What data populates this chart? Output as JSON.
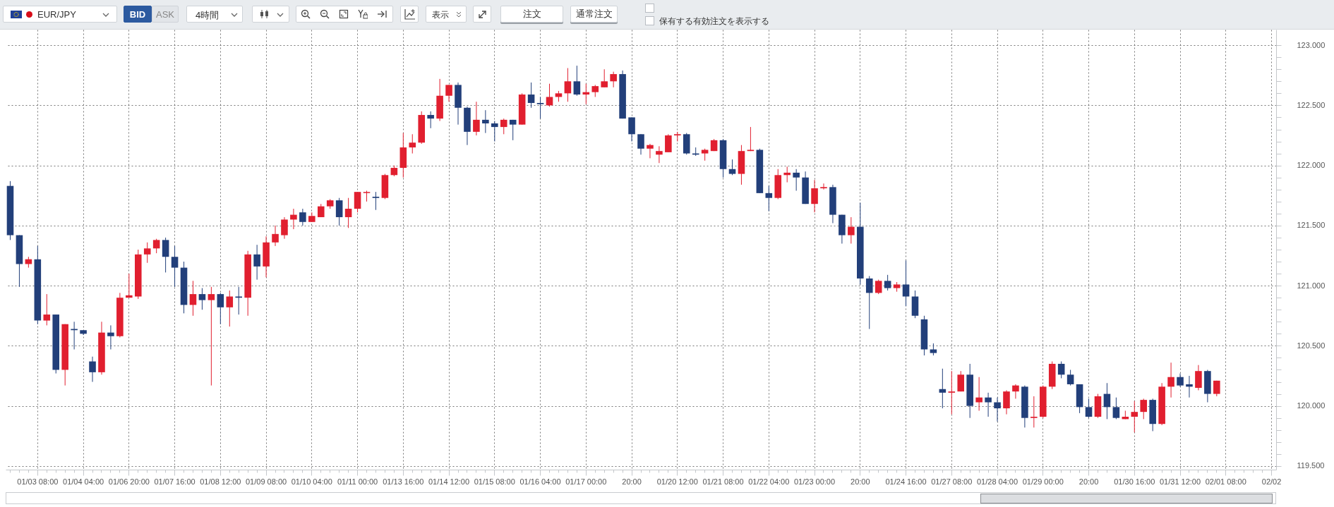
{
  "chart_data": {
    "type": "candlestick",
    "title": "EUR/JPY",
    "annotations": [
      "BID",
      "ASK",
      "4時間",
      "表示",
      "注文",
      "通常注文",
      "保有する有効注文を表示する"
    ],
    "categories": [
      null,
      null,
      null,
      "01/03 08:00",
      null,
      null,
      null,
      null,
      "01/04 04:00",
      null,
      null,
      null,
      null,
      "01/06 20:00",
      null,
      null,
      null,
      null,
      "01/07 16:00",
      null,
      null,
      null,
      null,
      "01/08 12:00",
      null,
      null,
      null,
      null,
      "01/09 08:00",
      null,
      null,
      null,
      null,
      "01/10 04:00",
      null,
      null,
      null,
      null,
      "01/11 00:00",
      null,
      null,
      null,
      null,
      "01/13 16:00",
      null,
      null,
      null,
      null,
      "01/14 12:00",
      null,
      null,
      null,
      null,
      "01/15 08:00",
      null,
      null,
      null,
      null,
      "01/16 04:00",
      null,
      null,
      null,
      null,
      "01/17 00:00",
      null,
      null,
      null,
      null,
      "20:00",
      null,
      null,
      null,
      null,
      "01/20 12:00",
      null,
      null,
      null,
      null,
      "01/21 08:00",
      null,
      null,
      null,
      null,
      "01/22 04:00",
      null,
      null,
      null,
      null,
      "01/23 00:00",
      null,
      null,
      null,
      null,
      "20:00",
      null,
      null,
      null,
      null,
      "01/24 16:00",
      null,
      null,
      null,
      null,
      "01/27 08:00",
      null,
      null,
      null,
      null,
      "01/28 04:00",
      null,
      null,
      null,
      null,
      "01/29 00:00",
      null,
      null,
      null,
      null,
      "20:00",
      null,
      null,
      null,
      null,
      "01/30 16:00",
      null,
      null,
      null,
      null,
      "01/31 12:00",
      null,
      null,
      null,
      null,
      "02/01 08:00",
      null,
      null,
      null,
      null,
      "02/02"
    ],
    "ohlc": [
      [
        121.83,
        121.87,
        121.38,
        121.42
      ],
      [
        121.42,
        121.42,
        120.99,
        121.18
      ],
      [
        121.18,
        121.24,
        121.15,
        121.22
      ],
      [
        121.22,
        121.33,
        120.68,
        120.71
      ],
      [
        120.71,
        120.93,
        120.67,
        120.76
      ],
      [
        120.76,
        120.76,
        120.27,
        120.3
      ],
      [
        120.3,
        120.68,
        120.17,
        120.68
      ],
      [
        120.64,
        120.7,
        120.47,
        120.63
      ],
      [
        120.63,
        120.63,
        120.59,
        120.6
      ],
      [
        120.37,
        120.41,
        120.2,
        120.28
      ],
      [
        120.28,
        120.7,
        120.26,
        120.61
      ],
      [
        120.61,
        120.67,
        120.47,
        120.58
      ],
      [
        120.58,
        120.94,
        120.57,
        120.9
      ],
      [
        120.9,
        121.1,
        120.9,
        120.92
      ],
      [
        120.91,
        121.3,
        120.89,
        121.26
      ],
      [
        121.26,
        121.36,
        121.19,
        121.31
      ],
      [
        121.31,
        121.39,
        121.27,
        121.38
      ],
      [
        121.38,
        121.4,
        121.11,
        121.24
      ],
      [
        121.24,
        121.33,
        120.99,
        121.15
      ],
      [
        121.15,
        121.2,
        120.77,
        120.84
      ],
      [
        120.84,
        121.04,
        120.75,
        120.93
      ],
      [
        120.93,
        120.98,
        120.8,
        120.88
      ],
      [
        120.88,
        120.99,
        120.17,
        120.93
      ],
      [
        120.93,
        120.94,
        120.68,
        120.82
      ],
      [
        120.82,
        120.96,
        120.66,
        120.91
      ],
      [
        120.91,
        120.99,
        120.76,
        120.9
      ],
      [
        120.9,
        121.29,
        120.75,
        121.26
      ],
      [
        121.26,
        121.34,
        121.05,
        121.16
      ],
      [
        121.16,
        121.41,
        121.07,
        121.36
      ],
      [
        121.36,
        121.5,
        121.33,
        121.43
      ],
      [
        121.42,
        121.57,
        121.39,
        121.55
      ],
      [
        121.55,
        121.64,
        121.47,
        121.59
      ],
      [
        121.61,
        121.64,
        121.5,
        121.53
      ],
      [
        121.53,
        121.61,
        121.53,
        121.58
      ],
      [
        121.57,
        121.68,
        121.57,
        121.66
      ],
      [
        121.66,
        121.72,
        121.64,
        121.71
      ],
      [
        121.71,
        121.73,
        121.5,
        121.57
      ],
      [
        121.57,
        121.73,
        121.48,
        121.64
      ],
      [
        121.64,
        121.78,
        121.61,
        121.78
      ],
      [
        121.77,
        121.79,
        121.7,
        121.78
      ],
      [
        121.74,
        121.78,
        121.63,
        121.73
      ],
      [
        121.73,
        121.93,
        121.72,
        121.92
      ],
      [
        121.92,
        122.0,
        121.91,
        121.98
      ],
      [
        121.98,
        122.27,
        121.9,
        122.15
      ],
      [
        122.15,
        122.26,
        122.1,
        122.19
      ],
      [
        122.19,
        122.45,
        122.18,
        122.42
      ],
      [
        122.42,
        122.45,
        122.31,
        122.39
      ],
      [
        122.39,
        122.72,
        122.37,
        122.58
      ],
      [
        122.58,
        122.67,
        122.53,
        122.67
      ],
      [
        122.67,
        122.69,
        122.34,
        122.48
      ],
      [
        122.48,
        122.49,
        122.17,
        122.28
      ],
      [
        122.28,
        122.53,
        122.25,
        122.38
      ],
      [
        122.38,
        122.46,
        122.27,
        122.35
      ],
      [
        122.35,
        122.37,
        122.2,
        122.32
      ],
      [
        122.32,
        122.39,
        122.26,
        122.38
      ],
      [
        122.38,
        122.38,
        122.21,
        122.34
      ],
      [
        122.34,
        122.6,
        122.34,
        122.59
      ],
      [
        122.59,
        122.69,
        122.48,
        122.52
      ],
      [
        122.52,
        122.57,
        122.39,
        122.51
      ],
      [
        122.5,
        122.68,
        122.49,
        122.57
      ],
      [
        122.57,
        122.62,
        122.53,
        122.6
      ],
      [
        122.6,
        122.81,
        122.53,
        122.7
      ],
      [
        122.7,
        122.83,
        122.58,
        122.59
      ],
      [
        122.59,
        122.68,
        122.51,
        122.61
      ],
      [
        122.61,
        122.67,
        122.57,
        122.66
      ],
      [
        122.65,
        122.8,
        122.65,
        122.7
      ],
      [
        122.7,
        122.78,
        122.65,
        122.76
      ],
      [
        122.76,
        122.79,
        122.39,
        122.39
      ],
      [
        122.4,
        122.4,
        122.2,
        122.26
      ],
      [
        122.26,
        122.26,
        122.09,
        122.14
      ],
      [
        122.14,
        122.18,
        122.06,
        122.17
      ],
      [
        122.09,
        122.16,
        122.02,
        122.12
      ],
      [
        122.11,
        122.26,
        122.11,
        122.25
      ],
      [
        122.25,
        122.28,
        122.2,
        122.26
      ],
      [
        122.26,
        122.27,
        122.09,
        122.1
      ],
      [
        122.1,
        122.15,
        122.08,
        122.09
      ],
      [
        122.1,
        122.14,
        122.04,
        122.13
      ],
      [
        122.12,
        122.22,
        122.12,
        122.21
      ],
      [
        122.21,
        122.22,
        121.9,
        121.97
      ],
      [
        121.97,
        122.05,
        121.92,
        121.93
      ],
      [
        121.93,
        122.17,
        121.84,
        122.12
      ],
      [
        122.12,
        122.32,
        122.12,
        122.13
      ],
      [
        122.13,
        122.14,
        121.77,
        121.77
      ],
      [
        121.77,
        121.83,
        121.62,
        121.73
      ],
      [
        121.73,
        121.97,
        121.72,
        121.92
      ],
      [
        121.92,
        121.99,
        121.86,
        121.94
      ],
      [
        121.94,
        121.97,
        121.79,
        121.9
      ],
      [
        121.9,
        121.95,
        121.68,
        121.68
      ],
      [
        121.68,
        121.88,
        121.61,
        121.81
      ],
      [
        121.81,
        121.85,
        121.8,
        121.82
      ],
      [
        121.82,
        121.84,
        121.52,
        121.59
      ],
      [
        121.59,
        121.59,
        121.35,
        121.42
      ],
      [
        121.42,
        121.57,
        121.35,
        121.49
      ],
      [
        121.49,
        121.69,
        121.01,
        121.06
      ],
      [
        121.06,
        121.08,
        120.64,
        120.94
      ],
      [
        120.94,
        121.05,
        120.93,
        121.04
      ],
      [
        121.04,
        121.09,
        120.96,
        120.98
      ],
      [
        120.98,
        121.03,
        120.95,
        121.01
      ],
      [
        121.01,
        121.21,
        120.83,
        120.91
      ],
      [
        120.91,
        120.96,
        120.73,
        120.75
      ],
      [
        120.72,
        120.75,
        120.42,
        120.47
      ],
      [
        120.47,
        120.52,
        120.42,
        120.44
      ],
      [
        120.14,
        120.31,
        119.98,
        120.11
      ],
      [
        120.11,
        120.29,
        119.93,
        120.12
      ],
      [
        120.12,
        120.29,
        120.12,
        120.26
      ],
      [
        120.26,
        120.35,
        119.9,
        120.0
      ],
      [
        120.03,
        120.24,
        119.96,
        120.07
      ],
      [
        120.07,
        120.11,
        119.91,
        120.03
      ],
      [
        120.03,
        120.07,
        119.87,
        119.98
      ],
      [
        119.98,
        120.13,
        119.93,
        120.12
      ],
      [
        120.12,
        120.18,
        120.06,
        120.17
      ],
      [
        120.16,
        120.17,
        119.82,
        119.9
      ],
      [
        119.9,
        120.08,
        119.82,
        119.91
      ],
      [
        119.91,
        120.17,
        119.9,
        120.16
      ],
      [
        120.16,
        120.37,
        120.14,
        120.35
      ],
      [
        120.35,
        120.37,
        120.23,
        120.26
      ],
      [
        120.26,
        120.3,
        120.17,
        120.18
      ],
      [
        120.18,
        120.18,
        119.94,
        119.99
      ],
      [
        119.99,
        120.06,
        119.9,
        119.91
      ],
      [
        119.91,
        120.1,
        119.9,
        120.08
      ],
      [
        120.1,
        120.19,
        119.89,
        119.99
      ],
      [
        119.99,
        120.07,
        119.89,
        119.9
      ],
      [
        119.89,
        119.96,
        119.89,
        119.91
      ],
      [
        119.91,
        120.04,
        119.78,
        119.95
      ],
      [
        119.95,
        120.06,
        119.89,
        120.05
      ],
      [
        120.05,
        120.06,
        119.79,
        119.85
      ],
      [
        119.85,
        120.19,
        119.84,
        120.16
      ],
      [
        120.16,
        120.36,
        120.07,
        120.24
      ],
      [
        120.24,
        120.27,
        120.16,
        120.17
      ],
      [
        120.18,
        120.25,
        120.07,
        120.16
      ],
      [
        120.15,
        120.34,
        120.13,
        120.29
      ],
      [
        120.29,
        120.3,
        120.03,
        120.1
      ],
      [
        120.1,
        120.21,
        120.08,
        120.21
      ],
      null,
      null,
      null,
      null,
      null,
      null
    ],
    "colors": [
      "#223f7a",
      "#223f7a",
      "#e11f2f",
      "#223f7a",
      "#e11f2f",
      "#223f7a",
      "#e11f2f",
      "#223f7a",
      "#223f7a",
      "#223f7a",
      "#e11f2f",
      "#223f7a",
      "#e11f2f",
      "#e11f2f",
      "#e11f2f",
      "#e11f2f",
      "#e11f2f",
      "#223f7a",
      "#223f7a",
      "#223f7a",
      "#e11f2f",
      "#223f7a",
      "#e11f2f",
      "#223f7a",
      "#e11f2f",
      "#223f7a",
      "#e11f2f",
      "#223f7a",
      "#e11f2f",
      "#e11f2f",
      "#e11f2f",
      "#e11f2f",
      "#223f7a",
      "#e11f2f",
      "#e11f2f",
      "#e11f2f",
      "#223f7a",
      "#e11f2f",
      "#e11f2f",
      "#e11f2f",
      "#223f7a",
      "#e11f2f",
      "#e11f2f",
      "#e11f2f",
      "#e11f2f",
      "#e11f2f",
      "#223f7a",
      "#e11f2f",
      "#e11f2f",
      "#223f7a",
      "#223f7a",
      "#e11f2f",
      "#223f7a",
      "#223f7a",
      "#e11f2f",
      "#223f7a",
      "#e11f2f",
      "#223f7a",
      "#223f7a",
      "#e11f2f",
      "#e11f2f",
      "#e11f2f",
      "#223f7a",
      "#e11f2f",
      "#e11f2f",
      "#e11f2f",
      "#e11f2f",
      "#223f7a",
      "#223f7a",
      "#223f7a",
      "#e11f2f",
      "#e11f2f",
      "#e11f2f",
      "#e11f2f",
      "#223f7a",
      "#223f7a",
      "#e11f2f",
      "#e11f2f",
      "#223f7a",
      "#223f7a",
      "#e11f2f",
      "#e11f2f",
      "#223f7a",
      "#223f7a",
      "#e11f2f",
      "#e11f2f",
      "#223f7a",
      "#223f7a",
      "#e11f2f",
      "#e11f2f",
      "#223f7a",
      "#223f7a",
      "#e11f2f",
      "#223f7a",
      "#223f7a",
      "#e11f2f",
      "#223f7a",
      "#e11f2f",
      "#223f7a",
      "#223f7a",
      "#223f7a",
      "#223f7a",
      "#223f7a",
      "#e11f2f",
      "#e11f2f",
      "#223f7a",
      "#e11f2f",
      "#223f7a",
      "#223f7a",
      "#e11f2f",
      "#e11f2f",
      "#223f7a",
      "#e11f2f",
      "#e11f2f",
      "#e11f2f",
      "#223f7a",
      "#223f7a",
      "#223f7a",
      "#223f7a",
      "#e11f2f",
      "#223f7a",
      "#223f7a",
      "#e11f2f",
      "#e11f2f",
      "#e11f2f",
      "#223f7a",
      "#e11f2f",
      "#e11f2f",
      "#223f7a",
      "#223f7a",
      "#e11f2f",
      "#223f7a",
      "#e11f2f",
      null,
      null,
      null,
      null,
      null,
      null
    ],
    "ylim": [
      119.47,
      123.13
    ],
    "yticks": [
      {
        "value": 119.5,
        "label": "119.500"
      },
      {
        "value": 119.6,
        "label": null
      },
      {
        "value": 119.7,
        "label": null
      },
      {
        "value": 119.8,
        "label": null
      },
      {
        "value": 119.9,
        "label": null
      },
      {
        "value": 120,
        "label": "120.000"
      },
      {
        "value": 120.1,
        "label": null
      },
      {
        "value": 120.2,
        "label": null
      },
      {
        "value": 120.3,
        "label": null
      },
      {
        "value": 120.4,
        "label": null
      },
      {
        "value": 120.5,
        "label": "120.500"
      },
      {
        "value": 120.6,
        "label": null
      },
      {
        "value": 120.7,
        "label": null
      },
      {
        "value": 120.8,
        "label": null
      },
      {
        "value": 120.9,
        "label": null
      },
      {
        "value": 121,
        "label": "121.000"
      },
      {
        "value": 121.1,
        "label": null
      },
      {
        "value": 121.2,
        "label": null
      },
      {
        "value": 121.3,
        "label": null
      },
      {
        "value": 121.4,
        "label": null
      },
      {
        "value": 121.5,
        "label": "121.500"
      },
      {
        "value": 121.6,
        "label": null
      },
      {
        "value": 121.7,
        "label": null
      },
      {
        "value": 121.8,
        "label": null
      },
      {
        "value": 121.9,
        "label": null
      },
      {
        "value": 122,
        "label": "122.000"
      },
      {
        "value": 122.1,
        "label": null
      },
      {
        "value": 122.2,
        "label": null
      },
      {
        "value": 122.3,
        "label": null
      },
      {
        "value": 122.4,
        "label": null
      },
      {
        "value": 122.5,
        "label": "122.500"
      },
      {
        "value": 122.6,
        "label": null
      },
      {
        "value": 122.7,
        "label": null
      },
      {
        "value": 122.8,
        "label": null
      },
      {
        "value": 122.9,
        "label": null
      },
      {
        "value": 123,
        "label": "123.000"
      }
    ],
    "grid": true
  }
}
